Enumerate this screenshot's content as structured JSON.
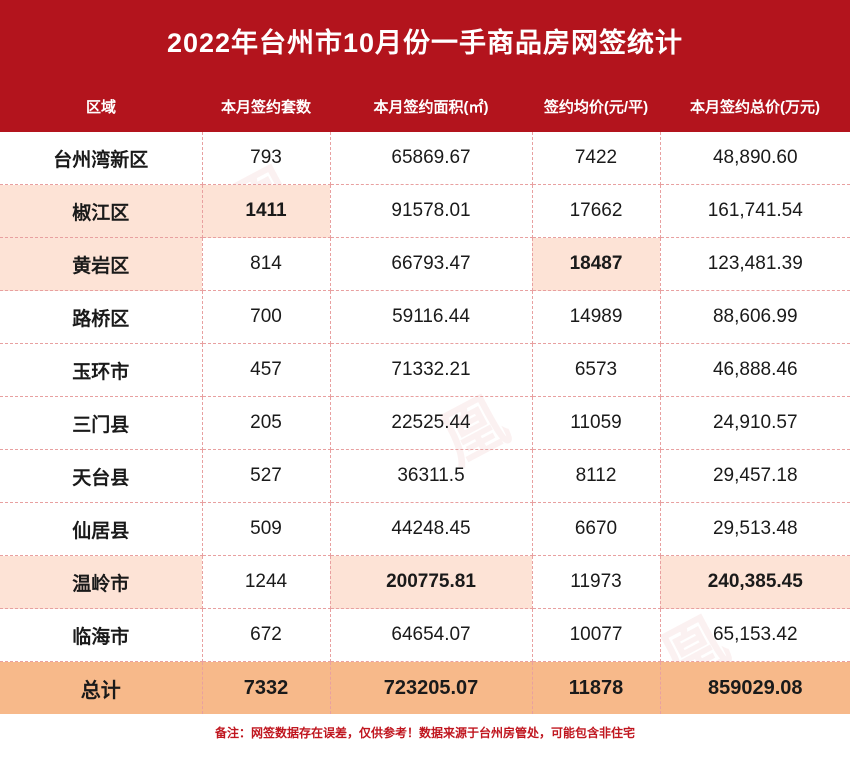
{
  "title": "2022年台州市10月份一手商品房网签统计",
  "headers": [
    "区域",
    "本月签约套数",
    "本月签约面积(㎡)",
    "签约均价(元/平)",
    "本月签约总价(万元)"
  ],
  "rows": [
    {
      "region": "台州湾新区",
      "units": "793",
      "area": "65869.67",
      "avg_price": "7422",
      "total": "48,890.60"
    },
    {
      "region": "椒江区",
      "units": "1411",
      "area": "91578.01",
      "avg_price": "17662",
      "total": "161,741.54"
    },
    {
      "region": "黄岩区",
      "units": "814",
      "area": "66793.47",
      "avg_price": "18487",
      "total": "123,481.39"
    },
    {
      "region": "路桥区",
      "units": "700",
      "area": "59116.44",
      "avg_price": "14989",
      "total": "88,606.99"
    },
    {
      "region": "玉环市",
      "units": "457",
      "area": "71332.21",
      "avg_price": "6573",
      "total": "46,888.46"
    },
    {
      "region": "三门县",
      "units": "205",
      "area": "22525.44",
      "avg_price": "11059",
      "total": "24,910.57"
    },
    {
      "region": "天台县",
      "units": "527",
      "area": "36311.5",
      "avg_price": "8112",
      "total": "29,457.18"
    },
    {
      "region": "仙居县",
      "units": "509",
      "area": "44248.45",
      "avg_price": "6670",
      "total": "29,513.48"
    },
    {
      "region": "温岭市",
      "units": "1244",
      "area": "200775.81",
      "avg_price": "11973",
      "total": "240,385.45"
    },
    {
      "region": "临海市",
      "units": "672",
      "area": "64654.07",
      "avg_price": "10077",
      "total": "65,153.42"
    }
  ],
  "total_row": {
    "region": "总计",
    "units": "7332",
    "area": "723205.07",
    "avg_price": "11878",
    "total": "859029.08"
  },
  "note": "备注：网签数据存在误差，仅供参考！数据来源于台州房管处，可能包含非住宅",
  "colors": {
    "header_red": "#b3141d",
    "highlight": "#fde3d6",
    "total_bg": "#f7b98a",
    "note_red": "#c0161f"
  }
}
